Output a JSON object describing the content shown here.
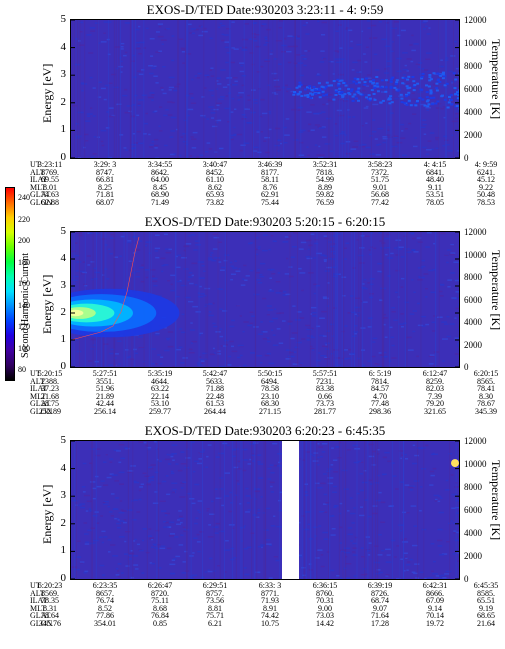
{
  "colorbar": {
    "label": "Second Harmonic Current",
    "ticks": [
      "240",
      "220",
      "200",
      "180",
      "160",
      "140",
      "120",
      "100",
      "80"
    ],
    "colors": [
      "#ff0000",
      "#ff6a00",
      "#ffcf00",
      "#d6ff00",
      "#6aff00",
      "#00ff40",
      "#00ffb0",
      "#00e0ff",
      "#0090ff",
      "#0040ff",
      "#2000e0",
      "#4000a0",
      "#300060",
      "#000000"
    ]
  },
  "chart_data": [
    {
      "type": "heatmap",
      "title": "EXOS-D/TED   Date:930203  3:23:11 - 4: 9:59",
      "ylabel": "Energy [eV]",
      "y2label": "Temperature [K]",
      "ylim": [
        0,
        5
      ],
      "y2lim": [
        0,
        12000
      ],
      "yticks": [
        "0",
        "1",
        "2",
        "3",
        "4",
        "5"
      ],
      "y2ticks": [
        "0",
        "2000",
        "4000",
        "6000",
        "8000",
        "10000",
        "12000"
      ],
      "table": {
        "rows": [
          {
            "label": "UT",
            "values": [
              "3:23:11",
              "3:29: 3",
              "3:34:55",
              "3:40:47",
              "3:46:39",
              "3:52:31",
              "3:58:23",
              "4: 4:15",
              "4: 9:59"
            ]
          },
          {
            "label": "ALT",
            "values": [
              "8769.",
              "8747.",
              "8642.",
              "8452.",
              "8177.",
              "7818.",
              "7372.",
              "6841.",
              "6241."
            ]
          },
          {
            "label": "ILAT",
            "values": [
              "69.55",
              "66.81",
              "64.00",
              "61.10",
              "58.11",
              "54.99",
              "51.75",
              "48.40",
              "45.12"
            ]
          },
          {
            "label": "MLT",
            "values": [
              "8.01",
              "8.25",
              "8.45",
              "8.62",
              "8.76",
              "8.89",
              "9.01",
              "9.11",
              "9.22"
            ]
          },
          {
            "label": "GLAT",
            "values": [
              "74.63",
              "71.81",
              "68.90",
              "65.93",
              "62.91",
              "59.82",
              "56.68",
              "53.51",
              "50.48"
            ]
          },
          {
            "label": "GLON",
            "values": [
              "62.88",
              "68.07",
              "71.49",
              "73.82",
              "75.44",
              "76.59",
              "77.42",
              "78.05",
              "78.53"
            ]
          }
        ]
      }
    },
    {
      "type": "heatmap",
      "title": "EXOS-D/TED   Date:930203  5:20:15 - 6:20:15",
      "ylabel": "Energy [eV]",
      "y2label": "Temperature [K]",
      "ylim": [
        0,
        5
      ],
      "y2lim": [
        0,
        12000
      ],
      "yticks": [
        "0",
        "1",
        "2",
        "3",
        "4",
        "5"
      ],
      "y2ticks": [
        "0",
        "2000",
        "4000",
        "6000",
        "8000",
        "10000",
        "12000"
      ],
      "table": {
        "rows": [
          {
            "label": "UT",
            "values": [
              "5:20:15",
              "5:27:51",
              "5:35:19",
              "5:42:47",
              "5:50:15",
              "5:57:51",
              "6: 5:19",
              "6:12:47",
              "6:20:15"
            ]
          },
          {
            "label": "ALT",
            "values": [
              "2388.",
              "3551.",
              "4644.",
              "5633.",
              "6494.",
              "7231.",
              "7814.",
              "8259.",
              "8565."
            ]
          },
          {
            "label": "ILAT",
            "values": [
              "37.23",
              "51.96",
              "63.22",
              "71.88",
              "78.58",
              "83.38",
              "84.57",
              "82.03",
              "78.41"
            ]
          },
          {
            "label": "MLT",
            "values": [
              "21.68",
              "21.89",
              "22.14",
              "22.48",
              "23.10",
              "0.66",
              "4.70",
              "7.39",
              "8.30"
            ]
          },
          {
            "label": "GLAT",
            "values": [
              "28.75",
              "42.44",
              "53.10",
              "61.53",
              "68.30",
              "73.73",
              "77.48",
              "79.20",
              "78.67"
            ]
          },
          {
            "label": "GLON",
            "values": [
              "252.89",
              "256.14",
              "259.77",
              "264.44",
              "271.15",
              "281.77",
              "298.36",
              "321.65",
              "345.39"
            ]
          }
        ]
      }
    },
    {
      "type": "heatmap",
      "title": "EXOS-D/TED   Date:930203  6:20:23 - 6:45:35",
      "ylabel": "Energy [eV]",
      "y2label": "Temperature [K]",
      "ylim": [
        0,
        5
      ],
      "y2lim": [
        0,
        12000
      ],
      "yticks": [
        "0",
        "1",
        "2",
        "3",
        "4",
        "5"
      ],
      "y2ticks": [
        "0",
        "2000",
        "4000",
        "6000",
        "8000",
        "10000",
        "12000"
      ],
      "table": {
        "rows": [
          {
            "label": "UT",
            "values": [
              "6:20:23",
              "6:23:35",
              "6:26:47",
              "6:29:51",
              "6:33: 3",
              "6:36:15",
              "6:39:19",
              "6:42:31",
              "6:45:35"
            ]
          },
          {
            "label": "ALT",
            "values": [
              "8569.",
              "8657.",
              "8720.",
              "8757.",
              "8771.",
              "8760.",
              "8726.",
              "8666.",
              "8585."
            ]
          },
          {
            "label": "ILAT",
            "values": [
              "78.35",
              "76.74",
              "75.11",
              "73.56",
              "71.93",
              "70.31",
              "68.74",
              "67.09",
              "65.51"
            ]
          },
          {
            "label": "MLT",
            "values": [
              "8.31",
              "8.52",
              "8.68",
              "8.81",
              "8.91",
              "9.00",
              "9.07",
              "9.14",
              "9.19"
            ]
          },
          {
            "label": "GLAT",
            "values": [
              "78.64",
              "77.86",
              "76.84",
              "75.71",
              "74.42",
              "73.03",
              "71.64",
              "70.14",
              "68.65"
            ]
          },
          {
            "label": "GLON",
            "values": [
              "345.76",
              "354.01",
              "0.85",
              "6.21",
              "10.75",
              "14.42",
              "17.28",
              "19.72",
              "21.64"
            ]
          }
        ]
      }
    }
  ]
}
